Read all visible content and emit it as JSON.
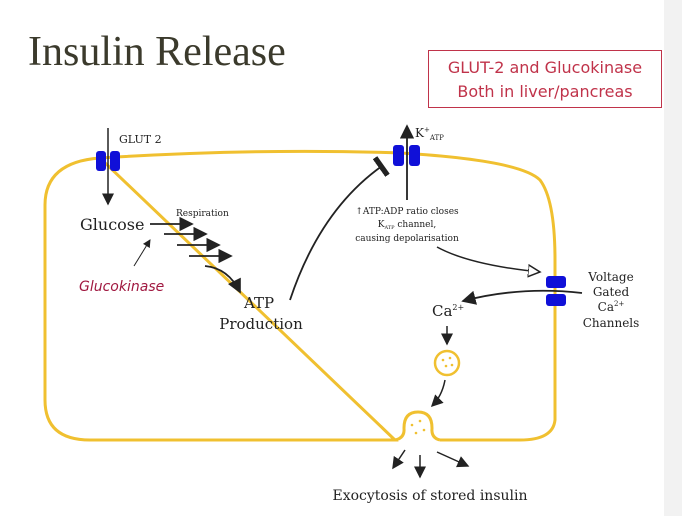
{
  "title": "Insulin Release",
  "note_box": {
    "line1": "GLUT-2 and Glucokinase",
    "line2": "Both in liver/pancreas"
  },
  "diagram": {
    "glut2": "GLUT 2",
    "glucose": "Glucose",
    "respiration": "Respiration",
    "glucokinase": "Glucokinase",
    "atp_line1": "ATP",
    "atp_line2": "Production",
    "katp": "K",
    "katp_sup": "+",
    "katp_sub": "ATP",
    "ratio_line1": "↑ATP:ADP ratio closes",
    "ratio_line2_k": "K",
    "ratio_line2_sub": "ATP",
    "ratio_line2_rest": " channel,",
    "ratio_line3": "causing depolarisation",
    "vg_line1": "Voltage",
    "vg_line2": "Gated",
    "vg_line3": "Ca",
    "vg_line3_sup": "2+",
    "vg_line4": "Channels",
    "ca": "Ca",
    "ca_sup": "2+",
    "exocytosis": "Exocytosis of stored insulin"
  },
  "colors": {
    "membrane": "#f0c030",
    "channel": "#1010d8",
    "accent": "#c0334a",
    "glucokinase": "#a01840"
  }
}
